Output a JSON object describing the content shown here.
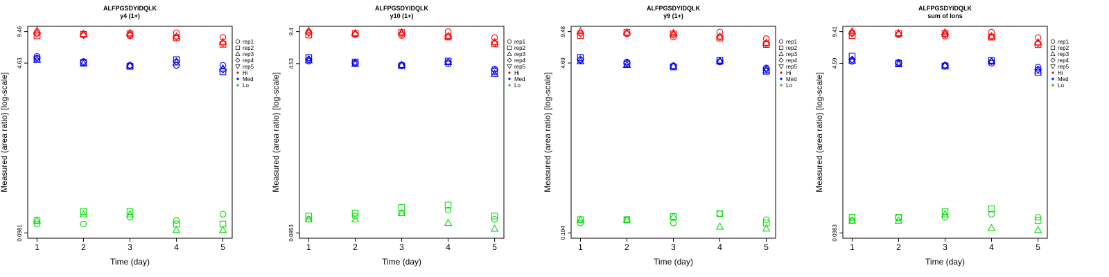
{
  "colors": {
    "Hi": "#ff0000",
    "Med": "#0000ff",
    "Lo": "#00dd00",
    "legend_Lo": "#00cc00"
  },
  "legend": {
    "replicates": [
      {
        "label": "rep1",
        "symbol": "circle"
      },
      {
        "label": "rep2",
        "symbol": "square"
      },
      {
        "label": "rep3",
        "symbol": "triangle-up"
      },
      {
        "label": "rep4",
        "symbol": "diamond"
      },
      {
        "label": "rep5",
        "symbol": "triangle-down"
      }
    ],
    "groups": [
      {
        "label": "Hi",
        "color": "#ff0000"
      },
      {
        "label": "Med",
        "color": "#0000ff"
      },
      {
        "label": "Lo",
        "color": "#00cc00"
      }
    ]
  },
  "chart_data": [
    {
      "type": "scatter",
      "title": "ALFPGSDYIDQLK",
      "subtitle": "y4 (1+)",
      "xlabel": "Time (day)",
      "ylabel": "Measured (area ratio) [log-scale]",
      "x_ticks": [
        "1",
        "2",
        "3",
        "4",
        "5"
      ],
      "y_ticks": [
        "0.0981",
        "4.63",
        "9.46"
      ],
      "ylim": [
        0.0981,
        9.46
      ],
      "series": [
        {
          "group": "Hi",
          "rep": "rep1",
          "x": [
            1,
            2,
            3,
            4,
            5
          ],
          "values": [
            9.3,
            8.8,
            8.6,
            9.2,
            8.3
          ]
        },
        {
          "group": "Hi",
          "rep": "rep2",
          "x": [
            1,
            2,
            3,
            4,
            5
          ],
          "values": [
            8.6,
            8.9,
            9.0,
            8.2,
            7.1
          ]
        },
        {
          "group": "Hi",
          "rep": "rep3",
          "x": [
            1,
            2,
            3,
            4,
            5
          ],
          "values": [
            9.7,
            9.0,
            9.2,
            8.5,
            7.5
          ]
        },
        {
          "group": "Hi",
          "rep": "rep4",
          "x": [
            1,
            2,
            3,
            4,
            5
          ],
          "values": [
            9.0,
            8.7,
            8.8,
            8.4,
            7.3
          ]
        },
        {
          "group": "Med",
          "rep": "rep1",
          "x": [
            1,
            2,
            3,
            4,
            5
          ],
          "values": [
            5.4,
            4.8,
            4.4,
            4.4,
            4.4
          ]
        },
        {
          "group": "Med",
          "rep": "rep2",
          "x": [
            1,
            2,
            3,
            4,
            5
          ],
          "values": [
            5.1,
            4.7,
            4.3,
            5.0,
            3.8
          ]
        },
        {
          "group": "Med",
          "rep": "rep3",
          "x": [
            1,
            2,
            3,
            4,
            5
          ],
          "values": [
            5.0,
            4.6,
            4.4,
            4.7,
            4.1
          ]
        },
        {
          "group": "Med",
          "rep": "rep4",
          "x": [
            1,
            2,
            3,
            4,
            5
          ],
          "values": [
            5.2,
            4.75,
            4.35,
            4.8,
            4.0
          ]
        },
        {
          "group": "Lo",
          "rep": "rep1",
          "x": [
            1,
            2,
            3,
            4,
            5
          ],
          "values": [
            0.12,
            0.12,
            0.14,
            0.13,
            0.15
          ]
        },
        {
          "group": "Lo",
          "rep": "rep2",
          "x": [
            1,
            2,
            3,
            4,
            5
          ],
          "values": [
            0.13,
            0.16,
            0.16,
            0.12,
            0.12
          ]
        },
        {
          "group": "Lo",
          "rep": "rep3",
          "x": [
            1,
            2,
            3,
            4,
            5
          ],
          "values": [
            0.13,
            0.15,
            0.15,
            0.105,
            0.105
          ]
        }
      ]
    },
    {
      "type": "scatter",
      "title": "ALFPGSDYIDQLK",
      "subtitle": "y10 (1+)",
      "xlabel": "Time (day)",
      "ylabel": "Measured (area ratio) [log-scale]",
      "x_ticks": [
        "1",
        "2",
        "3",
        "4",
        "5"
      ],
      "y_ticks": [
        "0.0953",
        "4.53",
        "9.4"
      ],
      "ylim": [
        0.0953,
        9.4
      ],
      "series": [
        {
          "group": "Hi",
          "rep": "rep1",
          "x": [
            1,
            2,
            3,
            4,
            5
          ],
          "values": [
            9.3,
            8.8,
            8.6,
            9.4,
            8.2
          ]
        },
        {
          "group": "Hi",
          "rep": "rep2",
          "x": [
            1,
            2,
            3,
            4,
            5
          ],
          "values": [
            8.7,
            9.0,
            9.2,
            8.3,
            7.1
          ]
        },
        {
          "group": "Hi",
          "rep": "rep3",
          "x": [
            1,
            2,
            3,
            4,
            5
          ],
          "values": [
            9.6,
            9.1,
            9.3,
            8.5,
            7.4
          ]
        },
        {
          "group": "Hi",
          "rep": "rep4",
          "x": [
            1,
            2,
            3,
            4,
            5
          ],
          "values": [
            9.1,
            8.8,
            8.9,
            8.4,
            7.2
          ]
        },
        {
          "group": "Med",
          "rep": "rep1",
          "x": [
            1,
            2,
            3,
            4,
            5
          ],
          "values": [
            4.8,
            4.6,
            4.4,
            4.5,
            4.0
          ]
        },
        {
          "group": "Med",
          "rep": "rep2",
          "x": [
            1,
            2,
            3,
            4,
            5
          ],
          "values": [
            5.2,
            4.7,
            4.3,
            4.8,
            3.8
          ]
        },
        {
          "group": "Med",
          "rep": "rep3",
          "x": [
            1,
            2,
            3,
            4,
            5
          ],
          "values": [
            4.9,
            4.5,
            4.4,
            4.7,
            3.6
          ]
        },
        {
          "group": "Med",
          "rep": "rep4",
          "x": [
            1,
            2,
            3,
            4,
            5
          ],
          "values": [
            5.0,
            4.6,
            4.35,
            4.7,
            3.9
          ]
        },
        {
          "group": "Lo",
          "rep": "rep1",
          "x": [
            1,
            2,
            3,
            4,
            5
          ],
          "values": [
            0.13,
            0.14,
            0.15,
            0.16,
            0.13
          ]
        },
        {
          "group": "Lo",
          "rep": "rep2",
          "x": [
            1,
            2,
            3,
            4,
            5
          ],
          "values": [
            0.14,
            0.15,
            0.17,
            0.18,
            0.14
          ]
        },
        {
          "group": "Lo",
          "rep": "rep3",
          "x": [
            1,
            2,
            3,
            4,
            5
          ],
          "values": [
            0.13,
            0.13,
            0.15,
            0.12,
            0.105
          ]
        }
      ]
    },
    {
      "type": "scatter",
      "title": "ALFPGSDYIDQLK",
      "subtitle": "y9 (1+)",
      "xlabel": "Time (day)",
      "ylabel": "Measured (area ratio) [log-scale]",
      "x_ticks": [
        "1",
        "2",
        "3",
        "4",
        "5"
      ],
      "y_ticks": [
        "0.104",
        "4.69",
        "9.48"
      ],
      "ylim": [
        0.104,
        9.48
      ],
      "series": [
        {
          "group": "Hi",
          "rep": "rep1",
          "x": [
            1,
            2,
            3,
            4,
            5
          ],
          "values": [
            9.2,
            9.0,
            8.4,
            9.4,
            8.1
          ]
        },
        {
          "group": "Hi",
          "rep": "rep2",
          "x": [
            1,
            2,
            3,
            4,
            5
          ],
          "values": [
            8.7,
            9.3,
            9.0,
            8.2,
            7.1
          ]
        },
        {
          "group": "Hi",
          "rep": "rep3",
          "x": [
            1,
            2,
            3,
            4,
            5
          ],
          "values": [
            9.6,
            9.3,
            9.2,
            8.5,
            7.4
          ]
        },
        {
          "group": "Hi",
          "rep": "rep4",
          "x": [
            1,
            2,
            3,
            4,
            5
          ],
          "values": [
            9.1,
            9.1,
            8.8,
            8.4,
            7.2
          ]
        },
        {
          "group": "Med",
          "rep": "rep1",
          "x": [
            1,
            2,
            3,
            4,
            5
          ],
          "values": [
            5.0,
            4.8,
            4.4,
            4.8,
            4.2
          ]
        },
        {
          "group": "Med",
          "rep": "rep2",
          "x": [
            1,
            2,
            3,
            4,
            5
          ],
          "values": [
            5.3,
            4.6,
            4.3,
            5.0,
            3.9
          ]
        },
        {
          "group": "Med",
          "rep": "rep3",
          "x": [
            1,
            2,
            3,
            4,
            5
          ],
          "values": [
            4.9,
            4.5,
            4.4,
            4.9,
            4.0
          ]
        },
        {
          "group": "Med",
          "rep": "rep4",
          "x": [
            1,
            2,
            3,
            4,
            5
          ],
          "values": [
            5.1,
            4.7,
            4.35,
            4.9,
            4.1
          ]
        },
        {
          "group": "Lo",
          "rep": "rep1",
          "x": [
            1,
            2,
            3,
            4,
            5
          ],
          "values": [
            0.13,
            0.14,
            0.13,
            0.16,
            0.14
          ]
        },
        {
          "group": "Lo",
          "rep": "rep2",
          "x": [
            1,
            2,
            3,
            4,
            5
          ],
          "values": [
            0.14,
            0.14,
            0.15,
            0.16,
            0.13
          ]
        },
        {
          "group": "Lo",
          "rep": "rep3",
          "x": [
            1,
            2,
            3,
            4,
            5
          ],
          "values": [
            0.14,
            0.14,
            0.15,
            0.12,
            0.115
          ]
        }
      ]
    },
    {
      "type": "scatter",
      "title": "ALFPGSDYIDQLK",
      "subtitle": "sum of Ions",
      "xlabel": "Time (day)",
      "ylabel": "Measured (area ratio) [log-scale]",
      "x_ticks": [
        "1",
        "2",
        "3",
        "4",
        "5"
      ],
      "y_ticks": [
        "0.0983",
        "4.59",
        "9.41"
      ],
      "ylim": [
        0.0983,
        9.41
      ],
      "series": [
        {
          "group": "Hi",
          "rep": "rep1",
          "x": [
            1,
            2,
            3,
            4,
            5
          ],
          "values": [
            9.2,
            8.8,
            8.5,
            9.3,
            8.2
          ]
        },
        {
          "group": "Hi",
          "rep": "rep2",
          "x": [
            1,
            2,
            3,
            4,
            5
          ],
          "values": [
            8.6,
            9.0,
            9.0,
            8.3,
            7.0
          ]
        },
        {
          "group": "Hi",
          "rep": "rep3",
          "x": [
            1,
            2,
            3,
            4,
            5
          ],
          "values": [
            9.5,
            9.1,
            9.3,
            8.5,
            7.4
          ]
        },
        {
          "group": "Hi",
          "rep": "rep4",
          "x": [
            1,
            2,
            3,
            4,
            5
          ],
          "values": [
            9.0,
            8.9,
            8.8,
            8.4,
            7.2
          ]
        },
        {
          "group": "Med",
          "rep": "rep1",
          "x": [
            1,
            2,
            3,
            4,
            5
          ],
          "values": [
            4.8,
            4.7,
            4.4,
            4.6,
            4.2
          ]
        },
        {
          "group": "Med",
          "rep": "rep2",
          "x": [
            1,
            2,
            3,
            4,
            5
          ],
          "values": [
            5.4,
            4.6,
            4.3,
            4.9,
            3.7
          ]
        },
        {
          "group": "Med",
          "rep": "rep3",
          "x": [
            1,
            2,
            3,
            4,
            5
          ],
          "values": [
            4.9,
            4.5,
            4.4,
            4.8,
            3.9
          ]
        },
        {
          "group": "Med",
          "rep": "rep4",
          "x": [
            1,
            2,
            3,
            4,
            5
          ],
          "values": [
            5.0,
            4.6,
            4.35,
            4.8,
            4.0
          ]
        },
        {
          "group": "Lo",
          "rep": "rep1",
          "x": [
            1,
            2,
            3,
            4,
            5
          ],
          "values": [
            0.13,
            0.14,
            0.14,
            0.15,
            0.14
          ]
        },
        {
          "group": "Lo",
          "rep": "rep2",
          "x": [
            1,
            2,
            3,
            4,
            5
          ],
          "values": [
            0.14,
            0.14,
            0.16,
            0.17,
            0.13
          ]
        },
        {
          "group": "Lo",
          "rep": "rep3",
          "x": [
            1,
            2,
            3,
            4,
            5
          ],
          "values": [
            0.13,
            0.13,
            0.15,
            0.11,
            0.105
          ]
        }
      ]
    }
  ]
}
